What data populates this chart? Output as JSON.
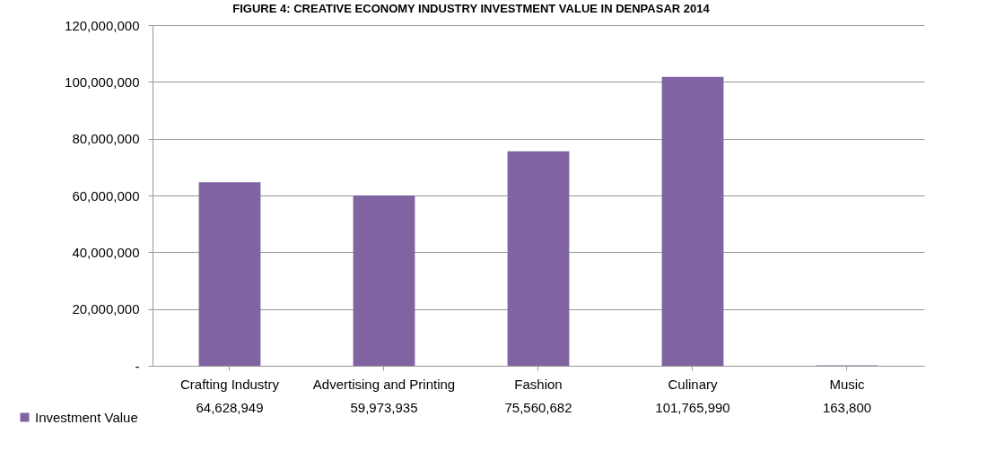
{
  "chart_data": {
    "type": "bar",
    "title": "FIGURE 4: CREATIVE ECONOMY INDUSTRY INVESTMENT VALUE IN DENPASAR 2014",
    "categories": [
      "Crafting Industry",
      "Advertising and Printing",
      "Fashion",
      "Culinary",
      "Music"
    ],
    "series": [
      {
        "name": "Investment Value",
        "color": "#8064a2",
        "values": [
          64628949,
          59973935,
          75560682,
          101765990,
          163800
        ],
        "value_labels": [
          "64,628,949",
          "59,973,935",
          "75,560,682",
          "101,765,990",
          "163,800"
        ]
      }
    ],
    "ylim": [
      0,
      120000000
    ],
    "yticks": [
      {
        "value": 0,
        "label": "-"
      },
      {
        "value": 20000000,
        "label": "20,000,000"
      },
      {
        "value": 40000000,
        "label": "40,000,000"
      },
      {
        "value": 60000000,
        "label": "60,000,000"
      },
      {
        "value": 80000000,
        "label": "80,000,000"
      },
      {
        "value": 100000000,
        "label": "100,000,000"
      },
      {
        "value": 120000000,
        "label": "120,000,000"
      }
    ],
    "grid": "y",
    "legend": "bottom left"
  }
}
